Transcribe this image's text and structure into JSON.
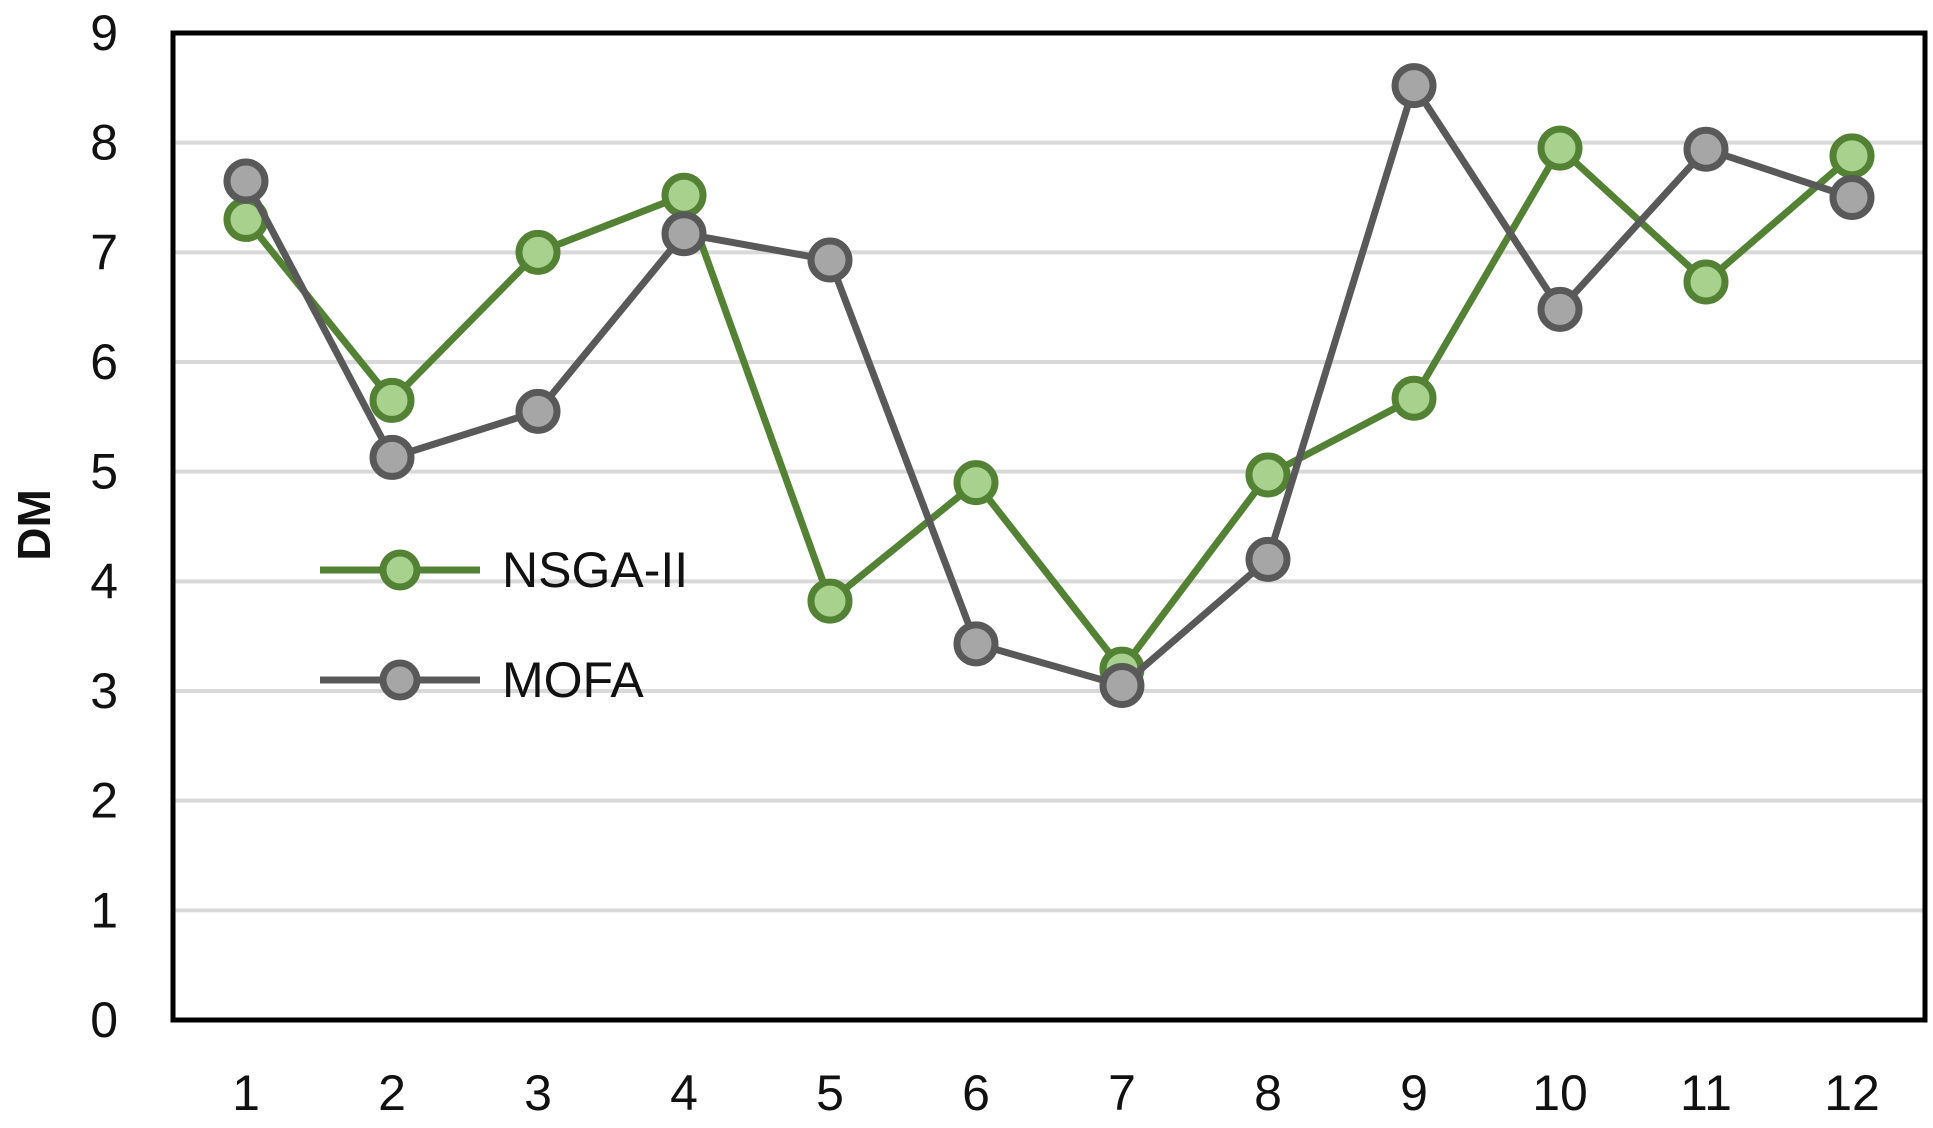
{
  "chart_data": {
    "type": "line",
    "title": "",
    "xlabel": "",
    "ylabel": "DM",
    "ylim": [
      0,
      9
    ],
    "yticks": [
      0,
      1,
      2,
      3,
      4,
      5,
      6,
      7,
      8,
      9
    ],
    "grid": true,
    "legend_position": "center-left",
    "categories": [
      "1",
      "2",
      "3",
      "4",
      "5",
      "6",
      "7",
      "8",
      "9",
      "10",
      "11",
      "12"
    ],
    "series": [
      {
        "name": "NSGA-II",
        "color": "#548235",
        "marker_fill": "#a9d18e",
        "values": [
          7.3,
          5.65,
          7.0,
          7.52,
          3.82,
          4.9,
          3.2,
          4.97,
          5.67,
          7.95,
          6.73,
          7.88
        ]
      },
      {
        "name": "MOFA",
        "color": "#595959",
        "marker_fill": "#a6a6a6",
        "values": [
          7.65,
          5.13,
          5.55,
          7.17,
          6.93,
          3.43,
          3.05,
          4.2,
          8.52,
          6.48,
          7.94,
          7.5
        ]
      }
    ]
  }
}
